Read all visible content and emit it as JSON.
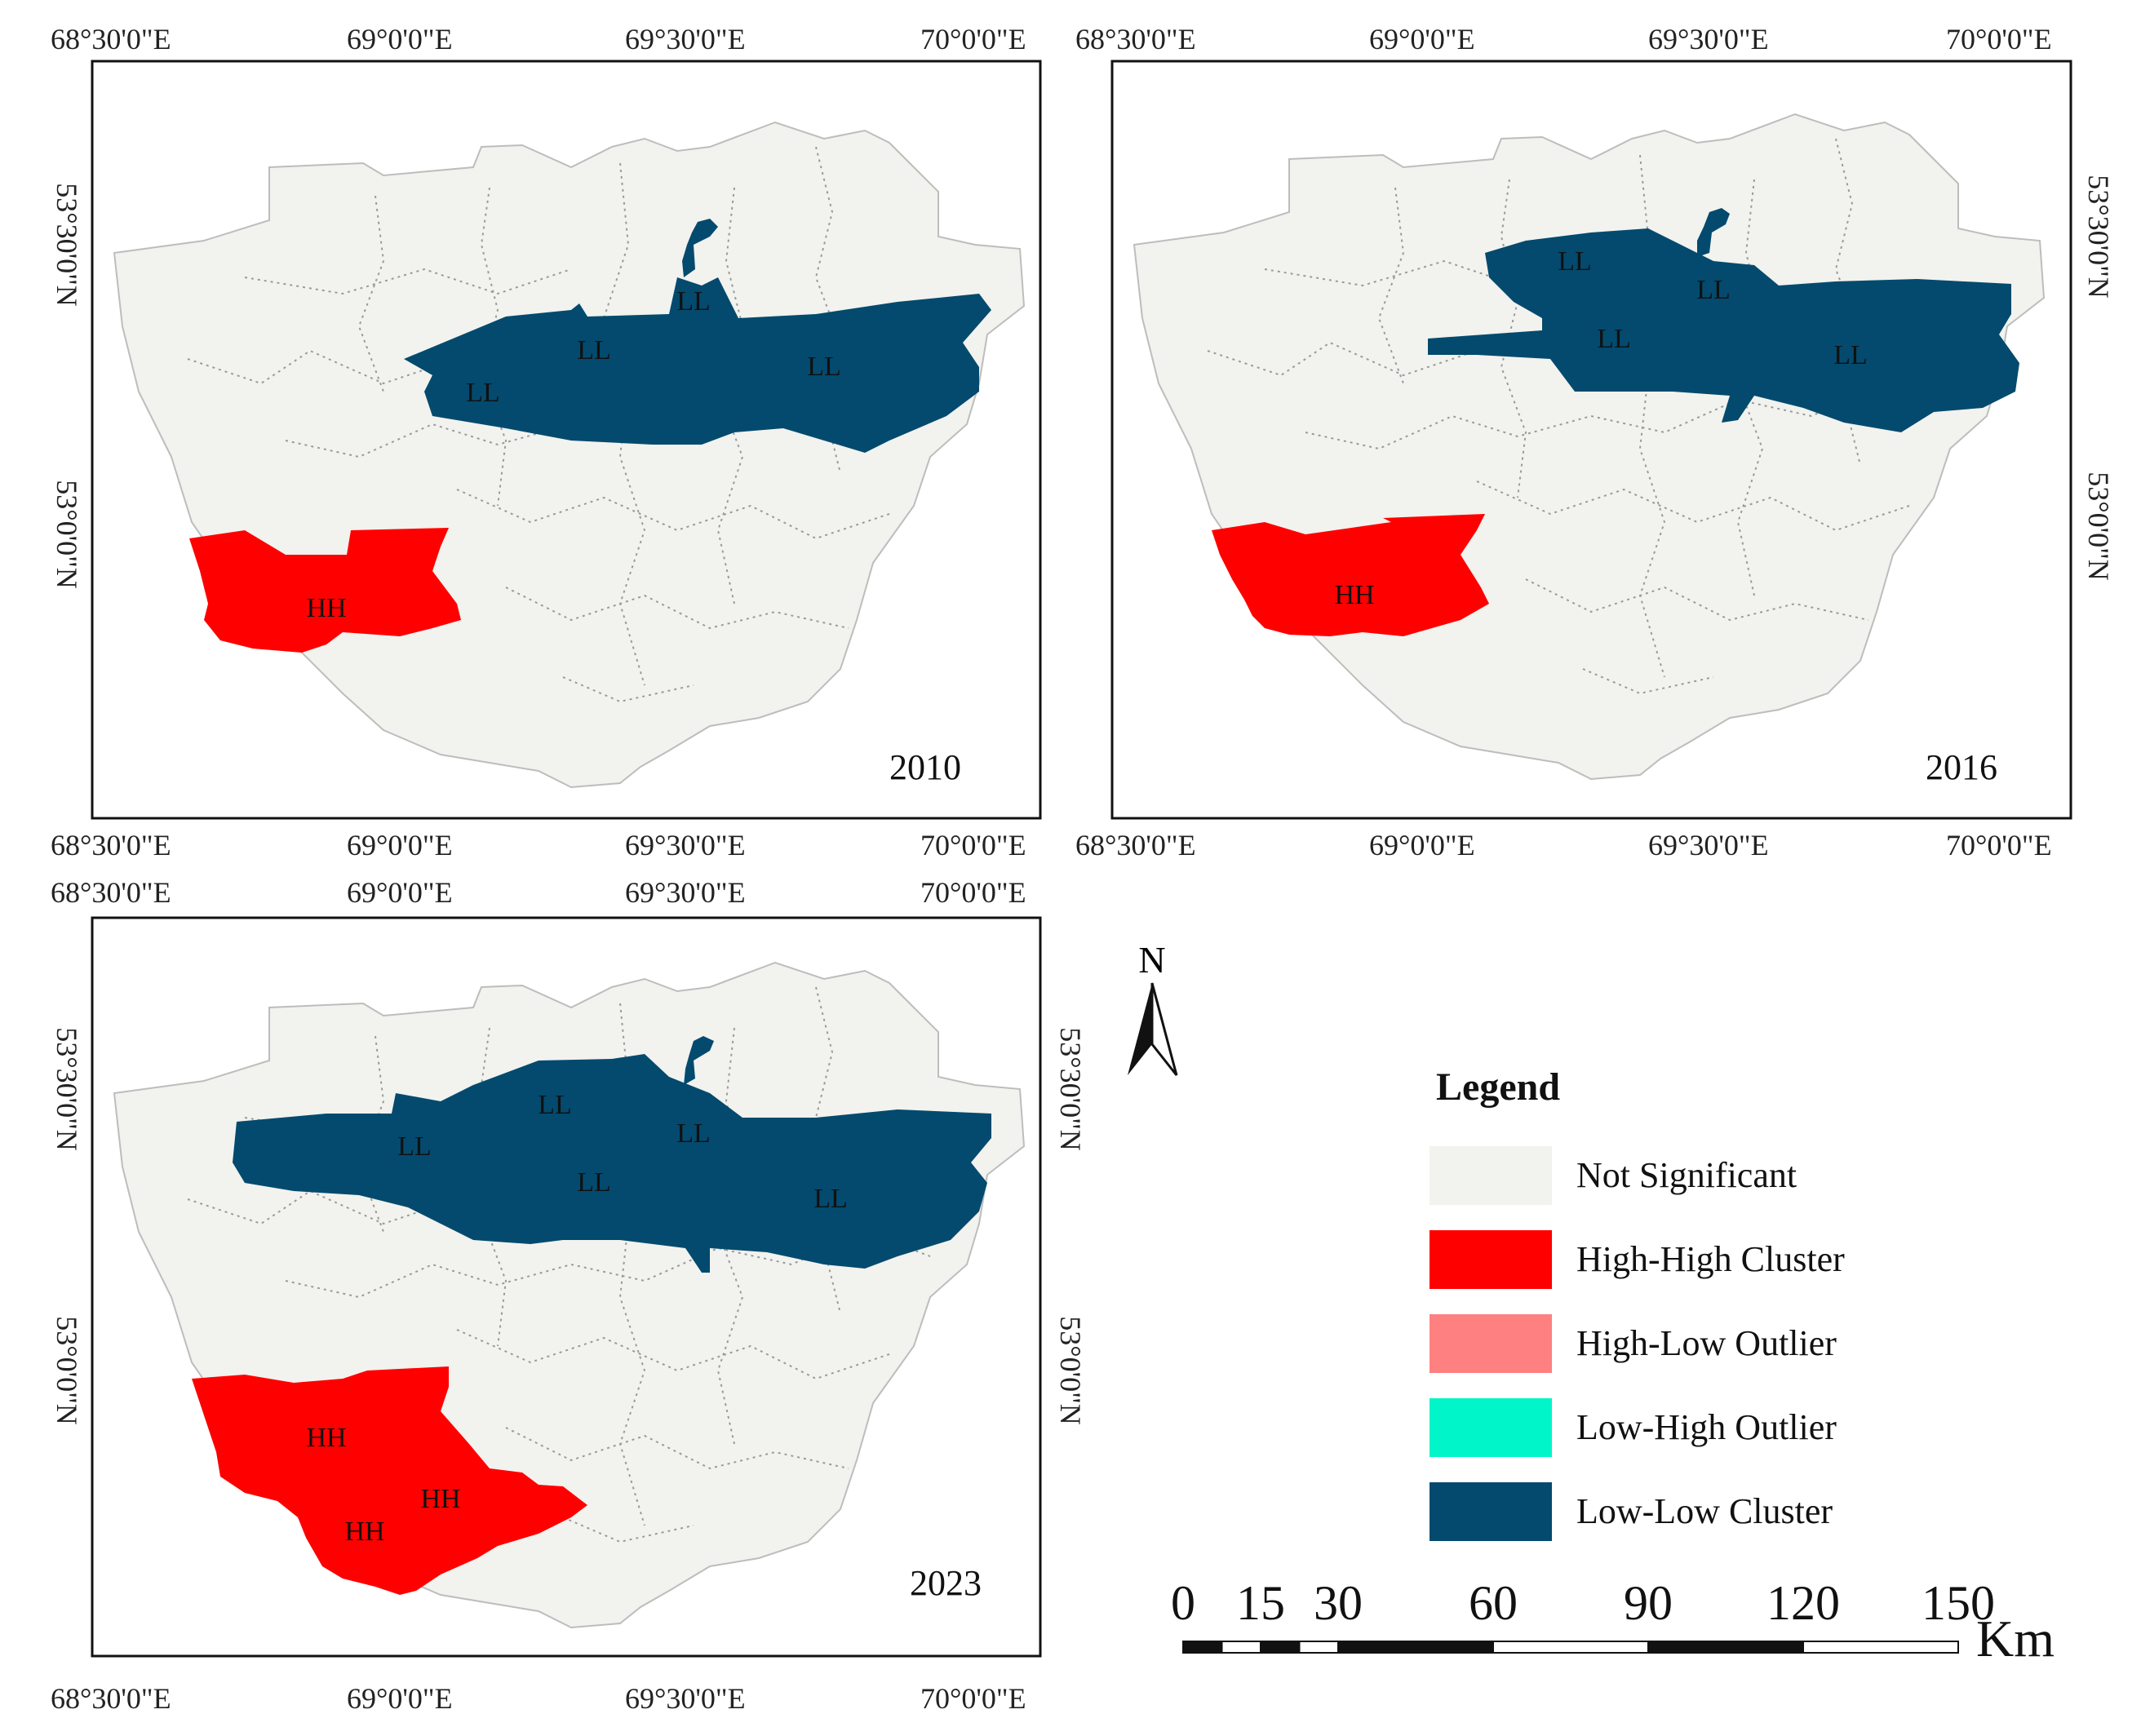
{
  "colors": {
    "not_significant": "#f2f2ee",
    "high_high": "#ff0000",
    "high_low": "#ff8080",
    "low_high": "#00f5c8",
    "low_low": "#034a6e",
    "boundary": "#9a9a9a"
  },
  "maps": [
    {
      "year": "2010",
      "top_ticks": [
        "68°30'0\"E",
        "69°0'0\"E",
        "69°30'0\"E",
        "70°0'0\"E"
      ],
      "bottom_ticks": [
        "68°30'0\"E",
        "69°0'0\"E",
        "69°30'0\"E",
        "70°0'0\"E"
      ],
      "side_ticks": [
        "53°30'0\"N",
        "53°0'0\"N"
      ],
      "cluster_labels": [
        "LL",
        "LL",
        "LL",
        "LL",
        "HH"
      ]
    },
    {
      "year": "2016",
      "top_ticks": [
        "68°30'0\"E",
        "69°0'0\"E",
        "69°30'0\"E",
        "70°0'0\"E"
      ],
      "bottom_ticks": [
        "68°30'0\"E",
        "69°0'0\"E",
        "69°30'0\"E",
        "70°0'0\"E"
      ],
      "side_ticks": [
        "53°30'0\"N",
        "53°0'0\"N"
      ],
      "cluster_labels": [
        "LL",
        "LL",
        "LL",
        "LL",
        "HH"
      ]
    },
    {
      "year": "2023",
      "top_ticks": [
        "68°30'0\"E",
        "69°0'0\"E",
        "69°30'0\"E",
        "70°0'0\"E"
      ],
      "bottom_ticks": [
        "68°30'0\"E",
        "69°0'0\"E",
        "69°30'0\"E",
        "70°0'0\"E"
      ],
      "side_ticks": [
        "53°30'0\"N",
        "53°0'0\"N"
      ],
      "cluster_labels": [
        "LL",
        "LL",
        "LL",
        "LL",
        "LL",
        "HH",
        "HH",
        "HH"
      ]
    }
  ],
  "north_arrow": {
    "label": "N",
    "icon": "north-arrow-icon"
  },
  "legend": {
    "title": "Legend",
    "items": [
      {
        "label": "Not Significant",
        "color": "#f2f2ee"
      },
      {
        "label": "High-High Cluster",
        "color": "#ff0000"
      },
      {
        "label": "High-Low Outlier",
        "color": "#ff8080"
      },
      {
        "label": "Low-High Outlier",
        "color": "#00f5c8"
      },
      {
        "label": "Low-Low Cluster",
        "color": "#034a6e"
      }
    ]
  },
  "scale_bar": {
    "ticks": [
      "0",
      "15",
      "30",
      "60",
      "90",
      "120",
      "150"
    ],
    "unit": "Km"
  }
}
